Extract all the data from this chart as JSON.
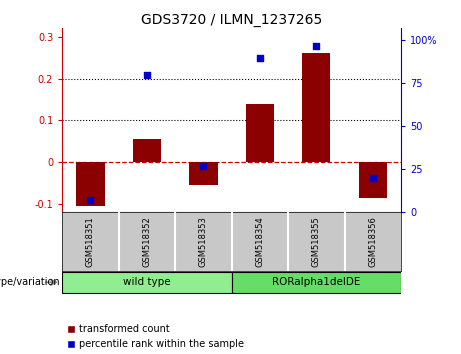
{
  "title": "GDS3720 / ILMN_1237265",
  "samples": [
    "GSM518351",
    "GSM518352",
    "GSM518353",
    "GSM518354",
    "GSM518355",
    "GSM518356"
  ],
  "transformed_counts": [
    -0.105,
    0.055,
    -0.055,
    0.138,
    0.26,
    -0.085
  ],
  "percentile_ranks": [
    7,
    80,
    27,
    90,
    97,
    20
  ],
  "groups": [
    {
      "label": "wild type",
      "indices": [
        0,
        1,
        2
      ],
      "color": "#90EE90"
    },
    {
      "label": "RORalpha1delDE",
      "indices": [
        3,
        4,
        5
      ],
      "color": "#66DD66"
    }
  ],
  "ylim_left": [
    -0.12,
    0.32
  ],
  "ylim_right": [
    0,
    107
  ],
  "yticks_left": [
    -0.1,
    0.0,
    0.1,
    0.2,
    0.3
  ],
  "yticks_right": [
    0,
    25,
    50,
    75,
    100
  ],
  "bar_color": "#8B0000",
  "marker_color": "#0000CD",
  "zero_line_color": "#CC0000",
  "grid_color": "black",
  "grid_levels": [
    0.1,
    0.2
  ],
  "background_color": "#ffffff",
  "plot_bg_color": "#ffffff",
  "sample_box_color": "#C8C8C8",
  "legend_red_label": "transformed count",
  "legend_blue_label": "percentile rank within the sample",
  "genotype_label": "genotype/variation",
  "title_fontsize": 10,
  "tick_fontsize": 7,
  "sample_fontsize": 6,
  "group_fontsize": 7.5,
  "legend_fontsize": 7,
  "genotype_fontsize": 7
}
